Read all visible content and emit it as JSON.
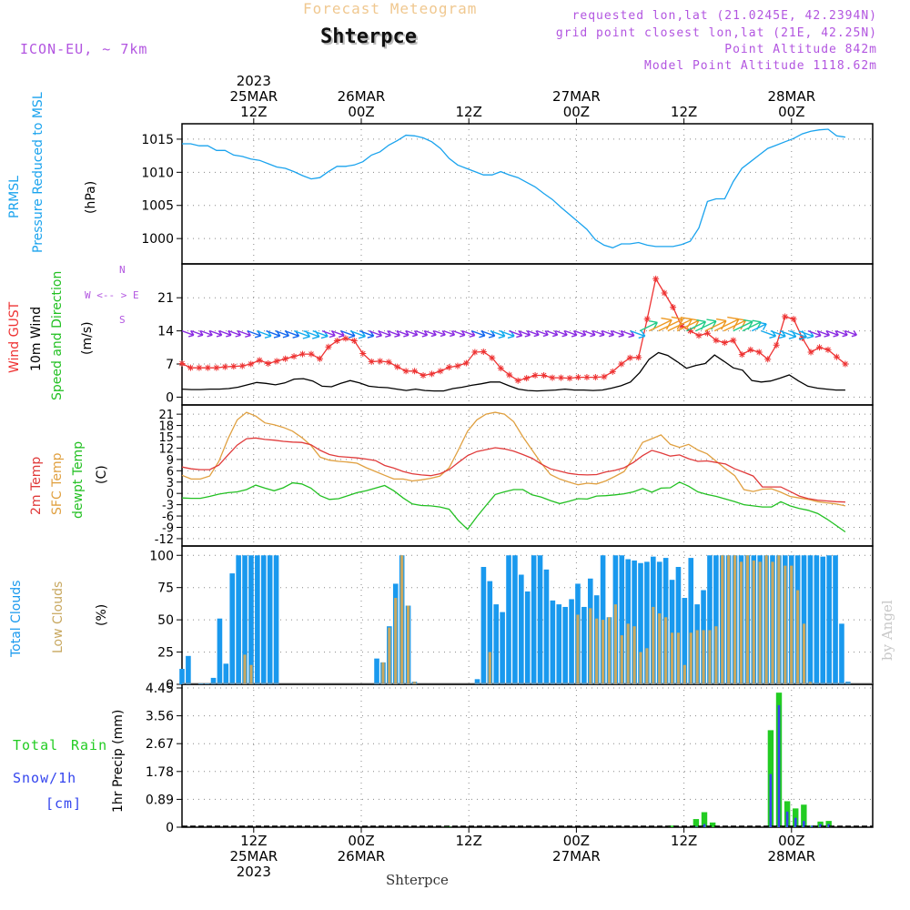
{
  "header": {
    "super_title": "Forecast Meteogram",
    "station": "Shterpce",
    "model": "ICON-EU, ~ 7km",
    "requested": "requested lon,lat (21.0245E, 42.2394N)",
    "grid_point": "grid point closest lon,lat (21E, 42.25N)",
    "point_alt": "Point Altitude 842m",
    "model_alt": "Model Point Altitude 1118.62m",
    "credit": "by Angel",
    "footer_station": "Shterpce"
  },
  "colors": {
    "pressure": "#1aa3ee",
    "gust": "#ee3333",
    "wind": "#000000",
    "t2m": "#e03a3a",
    "sfc": "#e0a040",
    "dewpt": "#22c022",
    "total_clouds": "#1999ee",
    "low_clouds": "#c8a860",
    "rain": "#22cc22",
    "snow": "#3344ee",
    "label_purple": "#b255e0"
  },
  "panel_labels": {
    "pressure": [
      "PRMSL",
      "Pressure Reduced to MSL",
      "(hPa)"
    ],
    "wind": [
      "Wind GUST",
      "10m Wind",
      "Speed and Direction",
      "(m/s)"
    ],
    "wind_compass": [
      "W <-- > E",
      "N",
      "S"
    ],
    "temp": [
      "2m Temp",
      "SFC Temp",
      "dewpt Temp",
      "(C)"
    ],
    "clouds": [
      "Total Clouds",
      "Low Clouds",
      "(%)"
    ],
    "precip": [
      "Total",
      "Rain",
      "Snow/1h",
      "[cm]",
      "1hr Precip (mm)"
    ]
  },
  "chart_data": {
    "type": "meteogram",
    "x_axis": {
      "start": "2023-03-25T02Z",
      "end": "2023-03-28T05Z",
      "step_hours": 1,
      "top_ticks": [
        {
          "hour": 10,
          "lines": [
            "2023",
            "25MAR",
            "12Z"
          ]
        },
        {
          "hour": 22,
          "lines": [
            "26MAR",
            "00Z"
          ]
        },
        {
          "hour": 34,
          "lines": [
            "12Z"
          ]
        },
        {
          "hour": 46,
          "lines": [
            "27MAR",
            "00Z"
          ]
        },
        {
          "hour": 58,
          "lines": [
            "12Z"
          ]
        },
        {
          "hour": 70,
          "lines": [
            "28MAR",
            "00Z"
          ]
        }
      ],
      "bottom_ticks": [
        {
          "hour": 10,
          "lines": [
            "12Z",
            "25MAR",
            "2023"
          ]
        },
        {
          "hour": 22,
          "lines": [
            "00Z",
            "26MAR"
          ]
        },
        {
          "hour": 34,
          "lines": [
            "12Z"
          ]
        },
        {
          "hour": 46,
          "lines": [
            "00Z",
            "27MAR"
          ]
        },
        {
          "hour": 58,
          "lines": [
            "12Z"
          ]
        },
        {
          "hour": 70,
          "lines": [
            "00Z",
            "28MAR"
          ]
        }
      ]
    },
    "pressure": {
      "ylabel": "(hPa)",
      "ylim": [
        997,
        1016.5
      ],
      "ticks": [
        1000,
        1005,
        1010,
        1015
      ],
      "values": [
        1014.3,
        1014.3,
        1014.0,
        1014.0,
        1013.3,
        1013.3,
        1012.6,
        1012.4,
        1012.0,
        1011.8,
        1011.3,
        1010.8,
        1010.6,
        1010.1,
        1009.5,
        1009.0,
        1009.2,
        1010.1,
        1010.9,
        1010.9,
        1011.1,
        1011.6,
        1012.6,
        1013.1,
        1014.1,
        1014.8,
        1015.6,
        1015.5,
        1015.2,
        1014.6,
        1013.6,
        1012.1,
        1011.1,
        1010.6,
        1010.1,
        1009.6,
        1009.6,
        1010.1,
        1009.6,
        1009.2,
        1008.5,
        1007.8,
        1006.8,
        1005.9,
        1004.7,
        1003.6,
        1002.5,
        1001.4,
        999.8,
        999.0,
        998.6,
        999.2,
        999.2,
        999.4,
        999.0,
        998.8,
        998.8,
        998.8,
        999.1,
        999.6,
        1001.6,
        1005.6,
        1006.0,
        1006.0,
        1008.6,
        1010.6,
        1011.6,
        1012.6,
        1013.6,
        1014.1,
        1014.6,
        1015.1,
        1015.8,
        1016.2,
        1016.4,
        1016.5,
        1015.5,
        1015.3
      ]
    },
    "wind": {
      "ylabel": "(m/s)",
      "ylim": [
        -0.5,
        27
      ],
      "ticks": [
        0,
        7,
        14,
        21
      ],
      "gust": [
        7.1,
        6.2,
        6.2,
        6.2,
        6.2,
        6.4,
        6.5,
        6.6,
        7.0,
        7.8,
        7.1,
        7.6,
        8.1,
        8.6,
        9.1,
        9.1,
        8.1,
        10.6,
        11.9,
        12.4,
        11.9,
        9.2,
        7.5,
        7.6,
        7.4,
        6.4,
        5.5,
        5.5,
        4.6,
        4.9,
        5.5,
        6.3,
        6.6,
        7.2,
        9.5,
        9.6,
        8.3,
        6.1,
        4.7,
        3.5,
        4.0,
        4.6,
        4.6,
        4.1,
        4.1,
        4.0,
        4.2,
        4.2,
        4.2,
        4.3,
        5.4,
        7.0,
        8.3,
        8.4,
        16.5,
        25.0,
        22.0,
        19.0,
        15.0,
        14.0,
        13.0,
        13.5,
        12.0,
        11.5,
        12.0,
        9.0,
        10.0,
        9.5,
        8.0,
        11.0,
        17.0,
        16.5,
        12.5,
        9.5,
        10.5,
        10.0,
        8.5,
        7.0
      ],
      "wind": [
        1.7,
        1.6,
        1.6,
        1.7,
        1.7,
        1.8,
        2.1,
        2.6,
        3.1,
        2.9,
        2.6,
        3.0,
        3.8,
        3.9,
        3.4,
        2.3,
        2.2,
        2.9,
        3.5,
        3.0,
        2.3,
        2.1,
        2.0,
        1.7,
        1.4,
        1.7,
        1.4,
        1.3,
        1.3,
        1.8,
        2.1,
        2.5,
        2.8,
        3.2,
        3.2,
        2.4,
        1.7,
        1.4,
        1.3,
        1.4,
        1.5,
        1.7,
        1.5,
        1.5,
        1.4,
        1.5,
        1.9,
        2.4,
        3.2,
        5.2,
        8.0,
        9.4,
        8.8,
        7.5,
        6.1,
        6.7,
        7.1,
        8.9,
        7.6,
        6.2,
        5.7,
        3.5,
        3.2,
        3.4,
        4.0,
        4.7,
        3.4,
        2.3,
        1.9,
        1.7,
        1.5,
        1.5
      ],
      "arrows_at": 14
    },
    "temperature": {
      "ylabel": "(C)",
      "ylim": [
        -12.5,
        22
      ],
      "ticks": [
        -12,
        -9,
        -6,
        -3,
        0,
        3,
        6,
        9,
        12,
        15,
        18,
        21
      ],
      "t2m": [
        7.0,
        6.5,
        6.3,
        6.3,
        7.5,
        10.2,
        12.8,
        14.5,
        14.7,
        14.3,
        14.1,
        13.8,
        13.6,
        13.5,
        12.9,
        11.4,
        10.3,
        9.8,
        9.6,
        9.4,
        9.1,
        8.7,
        7.4,
        6.7,
        5.8,
        5.2,
        4.9,
        4.7,
        5.2,
        6.3,
        8.2,
        10.0,
        11.1,
        11.6,
        12.1,
        11.8,
        11.2,
        10.3,
        9.3,
        7.8,
        6.5,
        5.9,
        5.3,
        5.0,
        4.9,
        5.0,
        5.7,
        6.1,
        6.8,
        8.2,
        10.0,
        11.4,
        10.7,
        9.9,
        10.2,
        9.2,
        8.5,
        8.6,
        8.2,
        7.8,
        6.5,
        5.6,
        4.6,
        1.7,
        1.7,
        1.7,
        0.5,
        -0.7,
        -1.4,
        -1.8,
        -2.0,
        -2.2,
        -2.3
      ],
      "sfc": [
        4.8,
        3.8,
        3.8,
        4.6,
        8.5,
        14.5,
        19.5,
        21.5,
        20.5,
        18.7,
        18.2,
        17.5,
        16.5,
        14.8,
        12.7,
        9.6,
        8.8,
        8.5,
        8.3,
        8.0,
        6.8,
        5.8,
        4.8,
        3.8,
        3.8,
        3.3,
        3.6,
        4.0,
        4.6,
        6.8,
        11.5,
        16.5,
        19.5,
        21.0,
        21.5,
        21.0,
        19.0,
        15.0,
        11.5,
        8.0,
        5.0,
        3.8,
        3.0,
        2.3,
        2.7,
        2.5,
        3.3,
        4.5,
        5.8,
        9.5,
        13.5,
        14.5,
        15.5,
        13.0,
        12.2,
        13.0,
        11.5,
        10.5,
        8.5,
        6.5,
        4.7,
        1.0,
        0.5,
        1.1,
        1.2,
        0.3,
        -0.8,
        -1.2,
        -1.6,
        -2.2,
        -2.5,
        -2.8,
        -3.3
      ],
      "dewpt": [
        -1.2,
        -1.3,
        -1.3,
        -0.8,
        -0.2,
        0.2,
        0.4,
        1.0,
        2.2,
        1.4,
        0.7,
        1.5,
        2.8,
        2.5,
        1.4,
        -0.6,
        -1.6,
        -1.4,
        -0.6,
        0.2,
        0.7,
        1.4,
        2.1,
        0.7,
        -1.2,
        -2.8,
        -3.2,
        -3.3,
        -3.6,
        -4.2,
        -7.2,
        -9.5,
        -6.2,
        -3.2,
        -0.3,
        0.4,
        1.0,
        1.0,
        -0.4,
        -1.0,
        -1.9,
        -2.7,
        -2.1,
        -1.4,
        -1.5,
        -0.7,
        -0.6,
        -0.4,
        -0.1,
        0.4,
        1.3,
        0.3,
        1.4,
        1.5,
        3.0,
        1.9,
        0.4,
        -0.3,
        -0.8,
        -1.5,
        -2.2,
        -3.0,
        -3.3,
        -3.6,
        -3.6,
        -2.2,
        -3.3,
        -4.0,
        -4.5,
        -5.3,
        -6.8,
        -8.5,
        -10.2
      ]
    },
    "clouds": {
      "ylabel": "(%)",
      "ylim": [
        0,
        103
      ],
      "ticks": [
        0,
        25,
        50,
        75,
        100
      ],
      "total": [
        12,
        22,
        0,
        1,
        1,
        5,
        51,
        16,
        86,
        100,
        100,
        100,
        100,
        100,
        100,
        100,
        0,
        0,
        0,
        0,
        0,
        0,
        0,
        0,
        0,
        0,
        0,
        0,
        0,
        0,
        0,
        20,
        17,
        45,
        78,
        100,
        61,
        2,
        0,
        0,
        0,
        0,
        0,
        0,
        0,
        0,
        0,
        4,
        91,
        80,
        62,
        56,
        100,
        100,
        85,
        72,
        100,
        100,
        89,
        65,
        62,
        60,
        66,
        78,
        60,
        82,
        69,
        100,
        52,
        100,
        100,
        97,
        96,
        94,
        95,
        99,
        95,
        98,
        81,
        91,
        67,
        98,
        62,
        73,
        100,
        100,
        100,
        100,
        100,
        100,
        100,
        100,
        100,
        100,
        100,
        100,
        100,
        100,
        100,
        100,
        100,
        100,
        99,
        100,
        100,
        47,
        2
      ],
      "low": [
        0,
        0,
        0,
        0,
        0,
        0,
        0,
        0,
        0,
        0,
        23,
        15,
        0,
        0,
        0,
        0,
        0,
        0,
        0,
        0,
        0,
        0,
        0,
        0,
        0,
        0,
        0,
        0,
        0,
        0,
        0,
        0,
        17,
        44,
        67,
        100,
        61,
        2,
        0,
        0,
        0,
        0,
        0,
        0,
        0,
        0,
        0,
        0,
        0,
        25,
        0,
        0,
        0,
        0,
        0,
        0,
        0,
        0,
        0,
        0,
        0,
        0,
        0,
        54,
        0,
        59,
        51,
        50,
        52,
        62,
        38,
        47,
        45,
        25,
        28,
        60,
        55,
        52,
        40,
        40,
        15,
        40,
        42,
        42,
        42,
        45,
        100,
        100,
        100,
        95,
        100,
        96,
        95,
        100,
        95,
        100,
        92,
        92,
        73,
        47,
        2
      ]
    },
    "precip": {
      "ylabel": "1hr Precip (mm)",
      "ylim": [
        0,
        4.45
      ],
      "ticks": [
        0,
        0.89,
        1.78,
        2.67,
        3.56,
        4.45
      ],
      "total_rain": [
        0,
        0,
        0,
        0,
        0,
        0,
        0,
        0,
        0,
        0,
        0,
        0,
        0,
        0,
        0,
        0,
        0,
        0,
        0,
        0,
        0,
        0,
        0,
        0,
        0,
        0,
        0,
        0,
        0,
        0,
        0,
        0,
        0.03,
        0,
        0,
        0,
        0,
        0,
        0,
        0,
        0,
        0,
        0,
        0,
        0,
        0,
        0,
        0,
        0,
        0,
        0,
        0,
        0,
        0,
        0,
        0,
        0,
        0,
        0,
        0.05,
        0,
        0,
        0.26,
        0.48,
        0.15,
        0,
        0,
        0,
        0,
        0,
        0,
        3.1,
        4.3,
        0.83,
        0.6,
        0.72,
        0.05,
        0.18,
        0.2,
        0,
        0
      ],
      "snow": [
        0,
        0,
        0,
        0,
        0,
        0,
        0,
        0,
        0,
        0,
        0,
        0,
        0,
        0,
        0,
        0,
        0,
        0,
        0,
        0,
        0,
        0,
        0,
        0,
        0,
        0,
        0,
        0,
        0,
        0,
        0,
        0,
        0,
        0,
        0,
        0,
        0,
        0,
        0,
        0,
        0,
        0,
        0,
        0,
        0,
        0,
        0,
        0,
        0,
        0,
        0,
        0,
        0,
        0,
        0,
        0,
        0,
        0,
        0,
        0,
        0,
        0,
        0.02,
        0.1,
        0,
        0,
        0,
        0,
        0,
        0,
        0,
        1.7,
        3.9,
        0.5,
        0.3,
        0.2,
        0.05,
        0.1,
        0.1,
        0,
        0
      ]
    }
  }
}
